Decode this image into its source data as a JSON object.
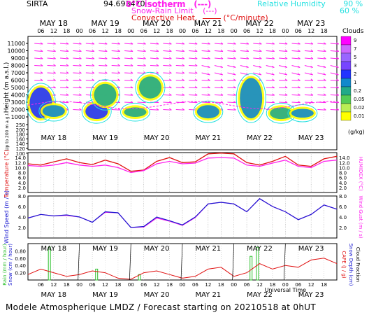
{
  "site": "SIRTA",
  "coords": "94.693470",
  "footer": "Modele Atmospherique LMDZ / Forecast starting on 20210518 at 0hUT",
  "colors": {
    "magenta": "#ff22ee",
    "cyan": "#22e0e0",
    "red": "#e01010",
    "blue": "#1818d0",
    "green": "#30c030",
    "black": "#000000"
  },
  "legend": {
    "isotherm": "0°C isotherm",
    "isotherm_style": "(---)",
    "snow_rain": "Snow-Rain Limit",
    "snow_rain_style": "(---)",
    "convective": "Convective Heat.",
    "convective_unit": "(°C/minute)",
    "rh_label": "Relative Humidity",
    "rh_90": "90 %",
    "rh_60": "60 %"
  },
  "chart_data": [
    {
      "type": "heatmap",
      "name_key": "clouds",
      "title": "Clouds",
      "ylabel": "Height (m a.s.l.)",
      "ylabel_low": "Up to 200 m a.g.l.",
      "yticks": [
        "11000",
        "10000",
        "9000",
        "8000",
        "7000",
        "6000",
        "5000",
        "4000",
        "3000",
        "2000",
        "1000",
        "250",
        "200",
        "180",
        "160",
        "140",
        "120",
        "100"
      ],
      "colorbar_unit": "(g/kg)",
      "colorbar_ticks": [
        "9",
        "7",
        "5",
        "3",
        "2",
        "1",
        "0.2",
        "0.05",
        "0.02",
        "0.01"
      ],
      "days": [
        "MAY 18",
        "MAY 19",
        "MAY 20",
        "MAY 21",
        "MAY 22",
        "MAY 23"
      ],
      "hours": [
        "06",
        "12",
        "18",
        "00",
        "06",
        "12",
        "18",
        "00",
        "06",
        "12",
        "18",
        "00",
        "06",
        "12",
        "18",
        "00",
        "06",
        "12",
        "18",
        "00",
        "06",
        "12",
        "18"
      ],
      "cloud_blobs": [
        {
          "t": 6,
          "z0": 800,
          "z1": 5000,
          "level": "2"
        },
        {
          "t": 12,
          "z0": 1000,
          "z1": 2600,
          "level": "1"
        },
        {
          "t": 32,
          "z0": 700,
          "z1": 2800,
          "level": "2"
        },
        {
          "t": 36,
          "z0": 2500,
          "z1": 5500,
          "level": "0.2"
        },
        {
          "t": 50,
          "z0": 1000,
          "z1": 2300,
          "level": "0.2"
        },
        {
          "t": 57,
          "z0": 3500,
          "z1": 6500,
          "level": "0.2"
        },
        {
          "t": 84,
          "z0": 800,
          "z1": 2600,
          "level": "1"
        },
        {
          "t": 104,
          "z0": 800,
          "z1": 6300,
          "level": "1"
        },
        {
          "t": 118,
          "z0": 700,
          "z1": 2300,
          "level": "0.2"
        },
        {
          "t": 128,
          "z0": 900,
          "z1": 2100,
          "level": "1"
        }
      ]
    },
    {
      "type": "line",
      "name_key": "temperature",
      "ylabel": "Temperature (°C)",
      "ylabel_right": "HUMIDEX (°C)",
      "ylim": [
        0,
        16
      ],
      "yticks": [
        "14.0",
        "12.0",
        "10.0",
        "8.0",
        "6.0",
        "4.0",
        "2.0"
      ],
      "x_hours": [
        0,
        6,
        12,
        18,
        24,
        30,
        36,
        42,
        48,
        54,
        60,
        66,
        72,
        78,
        84,
        90,
        96,
        102,
        108,
        114,
        120,
        126,
        132,
        138,
        144
      ],
      "series": [
        {
          "color": "red",
          "values": [
            11.5,
            11.0,
            12.3,
            13.5,
            12.0,
            11.2,
            13.0,
            11.5,
            8.5,
            9.0,
            12.5,
            14.0,
            12.0,
            12.3,
            15.5,
            15.8,
            15.5,
            12.0,
            11.0,
            12.5,
            14.5,
            11.0,
            10.5,
            13.5,
            14.5
          ]
        },
        {
          "color": "magenta",
          "values": [
            10.8,
            10.5,
            11.0,
            12.0,
            11.0,
            10.5,
            11.0,
            10.0,
            8.0,
            8.8,
            11.5,
            12.5,
            11.5,
            11.8,
            13.8,
            14.0,
            13.8,
            11.0,
            10.5,
            11.8,
            13.0,
            10.5,
            10.0,
            12.5,
            13.0
          ]
        }
      ]
    },
    {
      "type": "line",
      "name_key": "wind",
      "ylabel": "Wind Speed (m / s)",
      "ylabel_right": "Wind Gust (m / s)",
      "ylim": [
        0,
        8
      ],
      "yticks": [
        "8.0",
        "6.0",
        "4.0",
        "2.0"
      ],
      "x_hours": [
        0,
        6,
        12,
        18,
        24,
        30,
        36,
        42,
        48,
        54,
        60,
        66,
        72,
        78,
        84,
        90,
        96,
        102,
        108,
        114,
        120,
        126,
        132,
        138,
        144
      ],
      "series": [
        {
          "color": "blue",
          "values": [
            3.8,
            4.5,
            4.2,
            4.4,
            4.0,
            3.0,
            5.0,
            4.8,
            2.0,
            2.2,
            4.0,
            3.3,
            2.5,
            4.0,
            6.5,
            6.8,
            6.5,
            5.0,
            7.5,
            6.0,
            5.0,
            3.5,
            4.5,
            6.3,
            5.5
          ]
        },
        {
          "color": "magenta",
          "values": [
            3.8,
            4.5,
            4.2,
            4.3,
            4.0,
            3.0,
            4.9,
            4.8,
            2.0,
            2.1,
            3.8,
            3.2,
            2.4,
            3.9,
            6.5,
            6.8,
            6.5,
            5.0,
            7.5,
            6.0,
            5.0,
            3.5,
            4.5,
            6.3,
            5.5
          ]
        }
      ]
    },
    {
      "type": "bar",
      "name_key": "precip",
      "ylabel": "Rain (mm / hour)",
      "ylabel2": "Snow (cm / hour)",
      "ylabel_right": "CAPE (J / g)",
      "ylabel_right2": "Snow Depth (cm)",
      "ylabel_right3": "Cloud Fraction",
      "yticks": [
        "0.80",
        "0.60",
        "0.40",
        "0.20"
      ],
      "rain_bars": [
        {
          "t": 10,
          "v": 0.9
        },
        {
          "t": 32,
          "v": 0.3
        },
        {
          "t": 52,
          "v": 0.15
        },
        {
          "t": 104,
          "v": 0.65
        },
        {
          "t": 107,
          "v": 0.9
        }
      ],
      "cape_values": [
        0.15,
        0.3,
        0.2,
        0.1,
        0.15,
        0.25,
        0.2,
        0.05,
        0.02,
        0.2,
        0.25,
        0.15,
        0.05,
        0.1,
        0.3,
        0.35,
        0.1,
        0.2,
        0.45,
        0.3,
        0.4,
        0.35,
        0.55,
        0.6,
        0.45
      ],
      "xlabel": "Universal Time"
    }
  ]
}
